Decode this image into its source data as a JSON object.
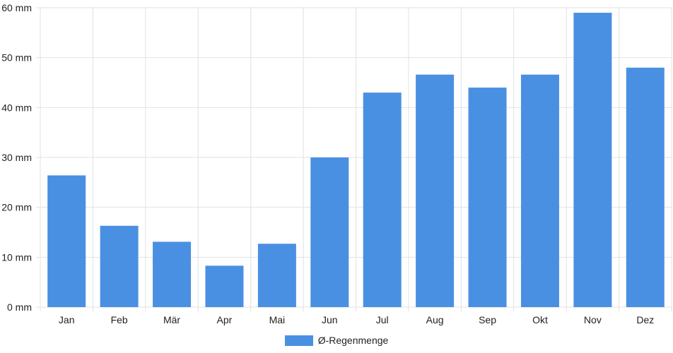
{
  "chart_data": {
    "type": "bar",
    "categories": [
      "Jan",
      "Feb",
      "Mär",
      "Apr",
      "Mai",
      "Jun",
      "Jul",
      "Aug",
      "Sep",
      "Okt",
      "Nov",
      "Dez"
    ],
    "series": [
      {
        "name": "Ø-Regenmenge",
        "color": "#4a90e2",
        "values": [
          26.4,
          16.3,
          13.1,
          8.3,
          12.7,
          30.0,
          43.0,
          46.6,
          44.0,
          46.6,
          59.0,
          48.0
        ]
      }
    ],
    "yticks": [
      "0 mm",
      "10 mm",
      "20 mm",
      "30 mm",
      "40 mm",
      "50 mm",
      "60 mm"
    ],
    "ylim": [
      0,
      60
    ],
    "grid": true,
    "legend_position": "bottom"
  }
}
